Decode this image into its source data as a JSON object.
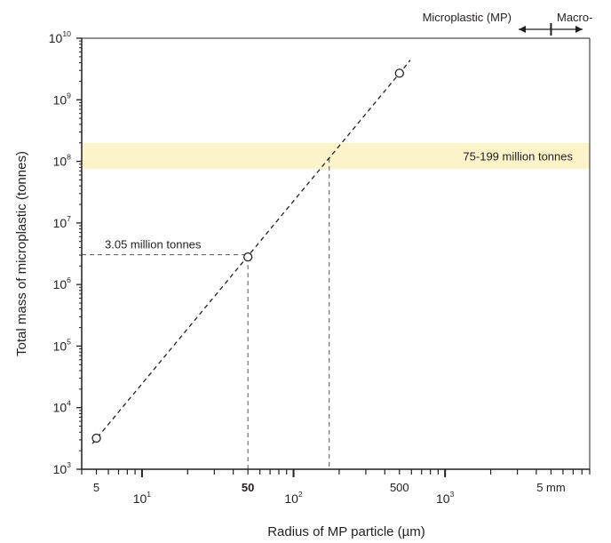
{
  "chart_data": {
    "type": "scatter",
    "title": "",
    "xlabel": "Radius of MP particle (µm)",
    "ylabel": "Total mass of microplastic (tonnes)",
    "x_scale": "log",
    "y_scale": "log",
    "xlim": [
      4,
      9000
    ],
    "ylim": [
      1000,
      10000000000
    ],
    "grid": false,
    "x_tick_labels": [
      {
        "value": 5,
        "label": "5",
        "bold": false
      },
      {
        "value": 10,
        "base": "10",
        "exp": "1"
      },
      {
        "value": 50,
        "label": "50",
        "bold": true
      },
      {
        "value": 100,
        "base": "10",
        "exp": "2"
      },
      {
        "value": 500,
        "label": "500",
        "bold": false
      },
      {
        "value": 1000,
        "base": "10",
        "exp": "3"
      },
      {
        "value": 5000,
        "label": "5 mm",
        "bold": false
      }
    ],
    "y_tick_labels": [
      {
        "value": 1000,
        "base": "10",
        "exp": "3"
      },
      {
        "value": 10000,
        "base": "10",
        "exp": "4"
      },
      {
        "value": 100000,
        "base": "10",
        "exp": "5"
      },
      {
        "value": 1000000,
        "base": "10",
        "exp": "6"
      },
      {
        "value": 10000000,
        "base": "10",
        "exp": "7"
      },
      {
        "value": 100000000,
        "base": "10",
        "exp": "8"
      },
      {
        "value": 1000000000,
        "base": "10",
        "exp": "9"
      },
      {
        "value": 10000000000,
        "base": "10",
        "exp": "10"
      }
    ],
    "series": [
      {
        "style": "dashed-line-with-open-circles",
        "points": [
          {
            "x": 5,
            "y": 3200
          },
          {
            "x": 50,
            "y": 2800000
          },
          {
            "x": 500,
            "y": 2700000000
          }
        ],
        "fit_line": {
          "x": [
            4.7,
            590
          ],
          "y": [
            2600,
            4400000000
          ]
        }
      }
    ],
    "band": {
      "y_range": [
        75000000,
        199000000
      ],
      "label": "75-199 million tonnes",
      "color": "#fdf3c8"
    },
    "reference_lines": {
      "horizontal": {
        "y": 3050000,
        "x_end": 50,
        "label": "3.05 million tonnes"
      },
      "vertical": [
        {
          "x": 50,
          "y_top": 2800000
        },
        {
          "x": 172,
          "y_top": 113000000
        }
      ]
    },
    "range_indicator": {
      "boundary_x": 5000,
      "left_label": "Microplastic (MP)",
      "right_label": "Macro-"
    }
  }
}
